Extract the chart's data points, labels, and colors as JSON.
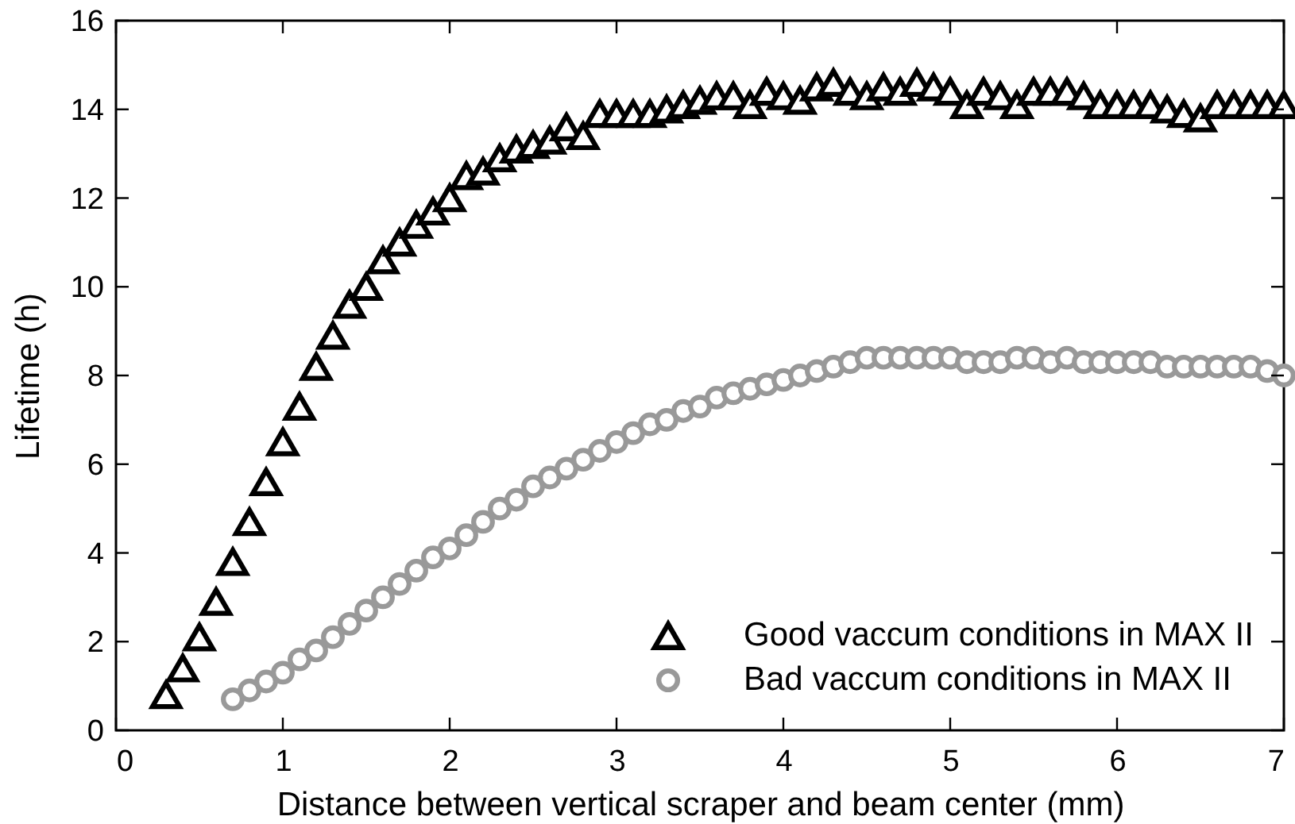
{
  "chart_data": {
    "type": "scatter",
    "xlabel": "Distance between vertical scraper and beam center (mm)",
    "ylabel": "Lifetime (h)",
    "xlim": [
      0,
      7
    ],
    "ylim": [
      0,
      16
    ],
    "xticks": [
      0,
      1,
      2,
      3,
      4,
      5,
      6,
      7
    ],
    "yticks": [
      0,
      2,
      4,
      6,
      8,
      10,
      12,
      14,
      16
    ],
    "grid": false,
    "legend": "bottom right",
    "series": [
      {
        "name": "Good vaccum conditions in MAX II",
        "color": "#000000",
        "marker": "triangle",
        "x": [
          0.3,
          0.4,
          0.5,
          0.6,
          0.7,
          0.8,
          0.9,
          1.0,
          1.1,
          1.2,
          1.3,
          1.4,
          1.5,
          1.6,
          1.7,
          1.8,
          1.9,
          2.0,
          2.1,
          2.2,
          2.3,
          2.4,
          2.5,
          2.6,
          2.7,
          2.8,
          2.9,
          3.0,
          3.1,
          3.2,
          3.3,
          3.4,
          3.5,
          3.6,
          3.7,
          3.8,
          3.9,
          4.0,
          4.1,
          4.2,
          4.3,
          4.4,
          4.5,
          4.6,
          4.7,
          4.8,
          4.9,
          5.0,
          5.1,
          5.2,
          5.3,
          5.4,
          5.5,
          5.6,
          5.7,
          5.8,
          5.9,
          6.0,
          6.1,
          6.2,
          6.3,
          6.4,
          6.5,
          6.6,
          6.7,
          6.8,
          6.9,
          7.0
        ],
        "values": [
          0.8,
          1.4,
          2.1,
          2.9,
          3.8,
          4.7,
          5.6,
          6.5,
          7.3,
          8.2,
          8.9,
          9.6,
          10.0,
          10.6,
          11.0,
          11.4,
          11.7,
          12.0,
          12.5,
          12.6,
          12.9,
          13.1,
          13.2,
          13.3,
          13.6,
          13.4,
          13.9,
          13.9,
          13.9,
          13.9,
          14.0,
          14.1,
          14.2,
          14.3,
          14.3,
          14.1,
          14.4,
          14.3,
          14.2,
          14.5,
          14.6,
          14.4,
          14.3,
          14.5,
          14.4,
          14.6,
          14.5,
          14.4,
          14.1,
          14.4,
          14.3,
          14.1,
          14.4,
          14.4,
          14.4,
          14.3,
          14.1,
          14.1,
          14.1,
          14.1,
          14.0,
          13.9,
          13.8,
          14.1,
          14.1,
          14.1,
          14.1,
          14.1
        ]
      },
      {
        "name": "Bad vaccum conditions in MAX II",
        "color": "#999999",
        "marker": "circle",
        "x": [
          0.7,
          0.8,
          0.9,
          1.0,
          1.1,
          1.2,
          1.3,
          1.4,
          1.5,
          1.6,
          1.7,
          1.8,
          1.9,
          2.0,
          2.1,
          2.2,
          2.3,
          2.4,
          2.5,
          2.6,
          2.7,
          2.8,
          2.9,
          3.0,
          3.1,
          3.2,
          3.3,
          3.4,
          3.5,
          3.6,
          3.7,
          3.8,
          3.9,
          4.0,
          4.1,
          4.2,
          4.3,
          4.4,
          4.5,
          4.6,
          4.7,
          4.8,
          4.9,
          5.0,
          5.1,
          5.2,
          5.3,
          5.4,
          5.5,
          5.6,
          5.7,
          5.8,
          5.9,
          6.0,
          6.1,
          6.2,
          6.3,
          6.4,
          6.5,
          6.6,
          6.7,
          6.8,
          6.9,
          7.0
        ],
        "values": [
          0.7,
          0.9,
          1.1,
          1.3,
          1.6,
          1.8,
          2.1,
          2.4,
          2.7,
          3.0,
          3.3,
          3.6,
          3.9,
          4.1,
          4.4,
          4.7,
          5.0,
          5.2,
          5.5,
          5.7,
          5.9,
          6.1,
          6.3,
          6.5,
          6.7,
          6.9,
          7.0,
          7.2,
          7.3,
          7.5,
          7.6,
          7.7,
          7.8,
          7.9,
          8.0,
          8.1,
          8.2,
          8.3,
          8.4,
          8.4,
          8.4,
          8.4,
          8.4,
          8.4,
          8.3,
          8.3,
          8.3,
          8.4,
          8.4,
          8.3,
          8.4,
          8.3,
          8.3,
          8.3,
          8.3,
          8.3,
          8.2,
          8.2,
          8.2,
          8.2,
          8.2,
          8.2,
          8.1,
          8.0
        ]
      }
    ]
  }
}
